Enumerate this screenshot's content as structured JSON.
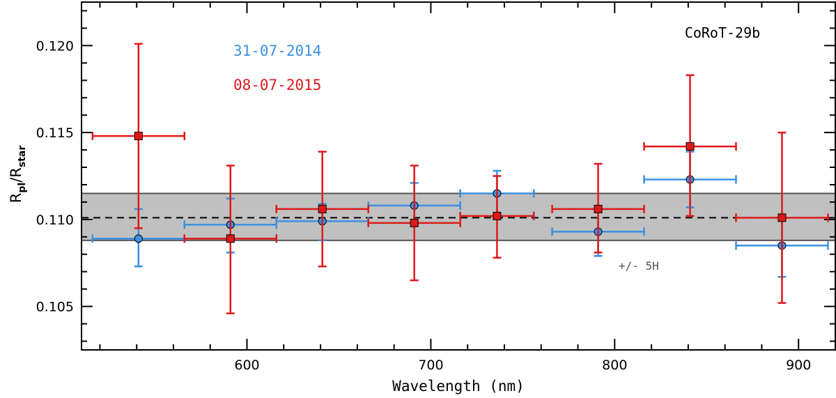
{
  "chart_data": {
    "type": "scatter",
    "title": "CoRoT-29b",
    "xlabel": "Wavelength (nm)",
    "ylabel": {
      "main": "R",
      "sub1": "pl",
      "mid": "/R",
      "sub2": "star"
    },
    "xlim": [
      510,
      920
    ],
    "ylim": [
      0.1025,
      0.1225
    ],
    "xticks": [
      600,
      700,
      800,
      900
    ],
    "yticks": [
      0.105,
      0.11,
      0.115,
      0.12
    ],
    "ytick_labels": [
      "0.105",
      "0.110",
      "0.115",
      "0.120"
    ],
    "xtick_labels": [
      "600",
      "700",
      "800",
      "900"
    ],
    "mean_line": 0.1101,
    "band": [
      0.1088,
      0.1115
    ],
    "band_label": "+/- 5H",
    "band_color": "#c0c0c0",
    "series": [
      {
        "name": "31-07-2014",
        "color": "#3a8fe0",
        "marker": "circle",
        "points": [
          {
            "x": 541,
            "y": 0.1089,
            "xerr": 25,
            "ylo": 0.1073,
            "yhi": 0.1106
          },
          {
            "x": 591,
            "y": 0.1097,
            "xerr": 25,
            "ylo": 0.1081,
            "yhi": 0.1112
          },
          {
            "x": 641,
            "y": 0.1099,
            "xerr": 25,
            "ylo": 0.1088,
            "yhi": 0.1109
          },
          {
            "x": 691,
            "y": 0.1108,
            "xerr": 25,
            "ylo": 0.1097,
            "yhi": 0.1121
          },
          {
            "x": 736,
            "y": 0.1115,
            "xerr": 20,
            "ylo": 0.1101,
            "yhi": 0.1128
          },
          {
            "x": 791,
            "y": 0.1093,
            "xerr": 25,
            "ylo": 0.1079,
            "yhi": 0.1106
          },
          {
            "x": 841,
            "y": 0.1123,
            "xerr": 25,
            "ylo": 0.1107,
            "yhi": 0.1139
          },
          {
            "x": 891,
            "y": 0.1085,
            "xerr": 25,
            "ylo": 0.1067,
            "yhi": 0.1101
          }
        ]
      },
      {
        "name": "08-07-2015",
        "color": "#e01818",
        "marker": "square",
        "points": [
          {
            "x": 541,
            "y": 0.1148,
            "xerr": 25,
            "ylo": 0.1095,
            "yhi": 0.1201
          },
          {
            "x": 591,
            "y": 0.1089,
            "xerr": 25,
            "ylo": 0.1046,
            "yhi": 0.1131
          },
          {
            "x": 641,
            "y": 0.1106,
            "xerr": 25,
            "ylo": 0.1073,
            "yhi": 0.1139
          },
          {
            "x": 691,
            "y": 0.1098,
            "xerr": 25,
            "ylo": 0.1065,
            "yhi": 0.1131
          },
          {
            "x": 736,
            "y": 0.1102,
            "xerr": 20,
            "ylo": 0.1078,
            "yhi": 0.1125
          },
          {
            "x": 791,
            "y": 0.1106,
            "xerr": 25,
            "ylo": 0.1081,
            "yhi": 0.1132
          },
          {
            "x": 841,
            "y": 0.1142,
            "xerr": 25,
            "ylo": 0.1102,
            "yhi": 0.1183
          },
          {
            "x": 891,
            "y": 0.1101,
            "xerr": 25,
            "ylo": 0.1052,
            "yhi": 0.115
          }
        ]
      }
    ]
  }
}
